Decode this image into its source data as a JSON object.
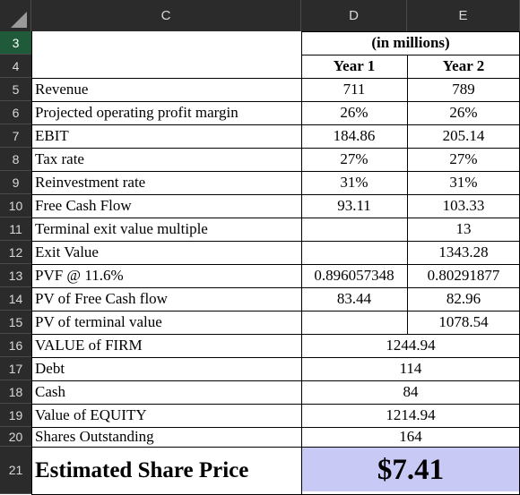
{
  "columns": {
    "c": "C",
    "d": "D",
    "e": "E"
  },
  "row_numbers": [
    "3",
    "4",
    "5",
    "6",
    "7",
    "8",
    "9",
    "10",
    "11",
    "12",
    "13",
    "14",
    "15",
    "16",
    "17",
    "18",
    "19",
    "20",
    "21"
  ],
  "header": {
    "units": "(in millions)",
    "year1": "Year 1",
    "year2": "Year 2"
  },
  "rows": [
    {
      "label": "Revenue",
      "d": "711",
      "e": "789"
    },
    {
      "label": "Projected operating profit margin",
      "d": "26%",
      "e": "26%"
    },
    {
      "label": "EBIT",
      "d": "184.86",
      "e": "205.14"
    },
    {
      "label": "Tax rate",
      "d": "27%",
      "e": "27%"
    },
    {
      "label": "Reinvestment rate",
      "d": "31%",
      "e": "31%"
    },
    {
      "label": "Free Cash Flow",
      "d": "93.11",
      "e": "103.33"
    },
    {
      "label": "Terminal exit value multiple",
      "d": "",
      "e": "13"
    },
    {
      "label": "Exit Value",
      "d": "",
      "e": "1343.28"
    },
    {
      "label": "PVF @ 11.6%",
      "d": "0.896057348",
      "e": "0.80291877"
    },
    {
      "label": "PV of Free Cash flow",
      "d": "83.44",
      "e": "82.96"
    },
    {
      "label": "PV of terminal value",
      "d": "",
      "e": "1078.54"
    },
    {
      "label": "VALUE of FIRM",
      "merged": "1244.94"
    },
    {
      "label": "Debt",
      "merged": "114"
    },
    {
      "label": "Cash",
      "merged": "84"
    },
    {
      "label": "Value of EQUITY",
      "merged": "1214.94"
    },
    {
      "label": "Shares Outstanding",
      "merged": "164"
    }
  ],
  "result": {
    "label": "Estimated Share Price",
    "value": "$7.41"
  },
  "colors": {
    "header_bg": "#2b2b2b",
    "selected_row": "#1f5a3a",
    "price_fill": "#c9c9f5"
  }
}
